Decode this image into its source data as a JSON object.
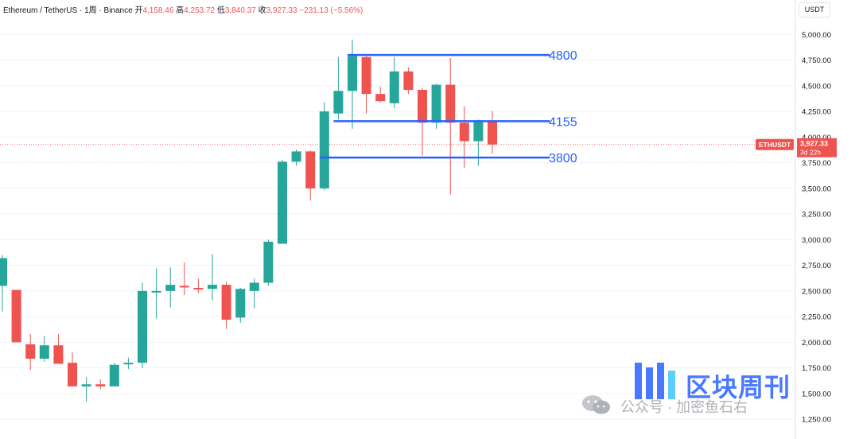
{
  "header": {
    "symbol": "Ethereum / TetherUS · 1周 · Binance",
    "open_label": "开",
    "open_value": "4,158.46",
    "high_label": "高",
    "high_value": "4,253.72",
    "low_label": "低",
    "low_value": "3,840.37",
    "close_label": "收",
    "close_value": "3,927.33",
    "change": "−231.13 (−5.56%)"
  },
  "currency_button": "USDT",
  "price_tag": {
    "ticker": "ETHUSDT",
    "price": "3,927.33",
    "countdown": "3d 22h"
  },
  "watermark": {
    "title": "区块周刊",
    "subtitle": "公众号 · 加密鱼石右"
  },
  "colors": {
    "up": "#26a69a",
    "down": "#ef5350",
    "level_line": "#2962ff",
    "level_text": "#2962ff"
  },
  "chart_data": {
    "type": "candlestick",
    "timeframe": "1周",
    "ylim": [
      1150,
      5150
    ],
    "y_ticks": [
      1250,
      1500,
      1750,
      2000,
      2250,
      2500,
      2750,
      3000,
      3250,
      3500,
      3750,
      4000,
      4250,
      4500,
      4750,
      5000
    ],
    "y_tick_labels": [
      "1,250.00",
      "1,500.00",
      "1,750.00",
      "2,000.00",
      "2,250.00",
      "2,500.00",
      "2,750.00",
      "3,000.00",
      "3,250.00",
      "3,500.00",
      "3,750.00",
      "4,000.00",
      "4,250.00",
      "4,500.00",
      "4,750.00",
      "5,000.00"
    ],
    "last_price": 3927.33,
    "candles": [
      {
        "o": 2550,
        "h": 2850,
        "l": 2300,
        "c": 2820
      },
      {
        "o": 2510,
        "h": 2510,
        "l": 2010,
        "c": 2000
      },
      {
        "o": 1980,
        "h": 2080,
        "l": 1730,
        "c": 1840
      },
      {
        "o": 1840,
        "h": 2060,
        "l": 1810,
        "c": 1970
      },
      {
        "o": 1970,
        "h": 2080,
        "l": 1800,
        "c": 1790
      },
      {
        "o": 1800,
        "h": 1900,
        "l": 1600,
        "c": 1570
      },
      {
        "o": 1570,
        "h": 1660,
        "l": 1420,
        "c": 1590
      },
      {
        "o": 1590,
        "h": 1640,
        "l": 1540,
        "c": 1570
      },
      {
        "o": 1570,
        "h": 1800,
        "l": 1570,
        "c": 1780
      },
      {
        "o": 1790,
        "h": 1850,
        "l": 1740,
        "c": 1800
      },
      {
        "o": 1800,
        "h": 2580,
        "l": 1750,
        "c": 2500
      },
      {
        "o": 2500,
        "h": 2720,
        "l": 2230,
        "c": 2500
      },
      {
        "o": 2500,
        "h": 2730,
        "l": 2340,
        "c": 2560
      },
      {
        "o": 2550,
        "h": 2780,
        "l": 2460,
        "c": 2540
      },
      {
        "o": 2530,
        "h": 2620,
        "l": 2480,
        "c": 2520
      },
      {
        "o": 2520,
        "h": 2860,
        "l": 2410,
        "c": 2560
      },
      {
        "o": 2560,
        "h": 2590,
        "l": 2130,
        "c": 2220
      },
      {
        "o": 2240,
        "h": 2530,
        "l": 2190,
        "c": 2520
      },
      {
        "o": 2500,
        "h": 2620,
        "l": 2330,
        "c": 2580
      },
      {
        "o": 2580,
        "h": 3000,
        "l": 2550,
        "c": 2980
      },
      {
        "o": 2960,
        "h": 3780,
        "l": 2960,
        "c": 3760
      },
      {
        "o": 3760,
        "h": 3880,
        "l": 3720,
        "c": 3860
      },
      {
        "o": 3860,
        "h": 3870,
        "l": 3380,
        "c": 3500
      },
      {
        "o": 3500,
        "h": 4340,
        "l": 3480,
        "c": 4250
      },
      {
        "o": 4230,
        "h": 4780,
        "l": 4170,
        "c": 4450
      },
      {
        "o": 4450,
        "h": 4950,
        "l": 4080,
        "c": 4790
      },
      {
        "o": 4780,
        "h": 4790,
        "l": 4230,
        "c": 4420
      },
      {
        "o": 4420,
        "h": 4490,
        "l": 4340,
        "c": 4350
      },
      {
        "o": 4330,
        "h": 4780,
        "l": 4280,
        "c": 4640
      },
      {
        "o": 4640,
        "h": 4680,
        "l": 4420,
        "c": 4460
      },
      {
        "o": 4460,
        "h": 4480,
        "l": 3820,
        "c": 4140
      },
      {
        "o": 4140,
        "h": 4520,
        "l": 4080,
        "c": 4510
      },
      {
        "o": 4510,
        "h": 4770,
        "l": 3440,
        "c": 4140
      },
      {
        "o": 4140,
        "h": 4300,
        "l": 3700,
        "c": 3960
      },
      {
        "o": 3960,
        "h": 4170,
        "l": 3720,
        "c": 4150
      },
      {
        "o": 4158.46,
        "h": 4253.72,
        "l": 3840.37,
        "c": 3927.33
      }
    ],
    "levels": [
      {
        "price": 4800,
        "label": "4800",
        "from_index": 25,
        "to_index": 39
      },
      {
        "price": 4155,
        "label": "4155",
        "from_index": 24,
        "to_index": 39
      },
      {
        "price": 3800,
        "label": "3800",
        "from_index": 23,
        "to_index": 39
      }
    ]
  }
}
